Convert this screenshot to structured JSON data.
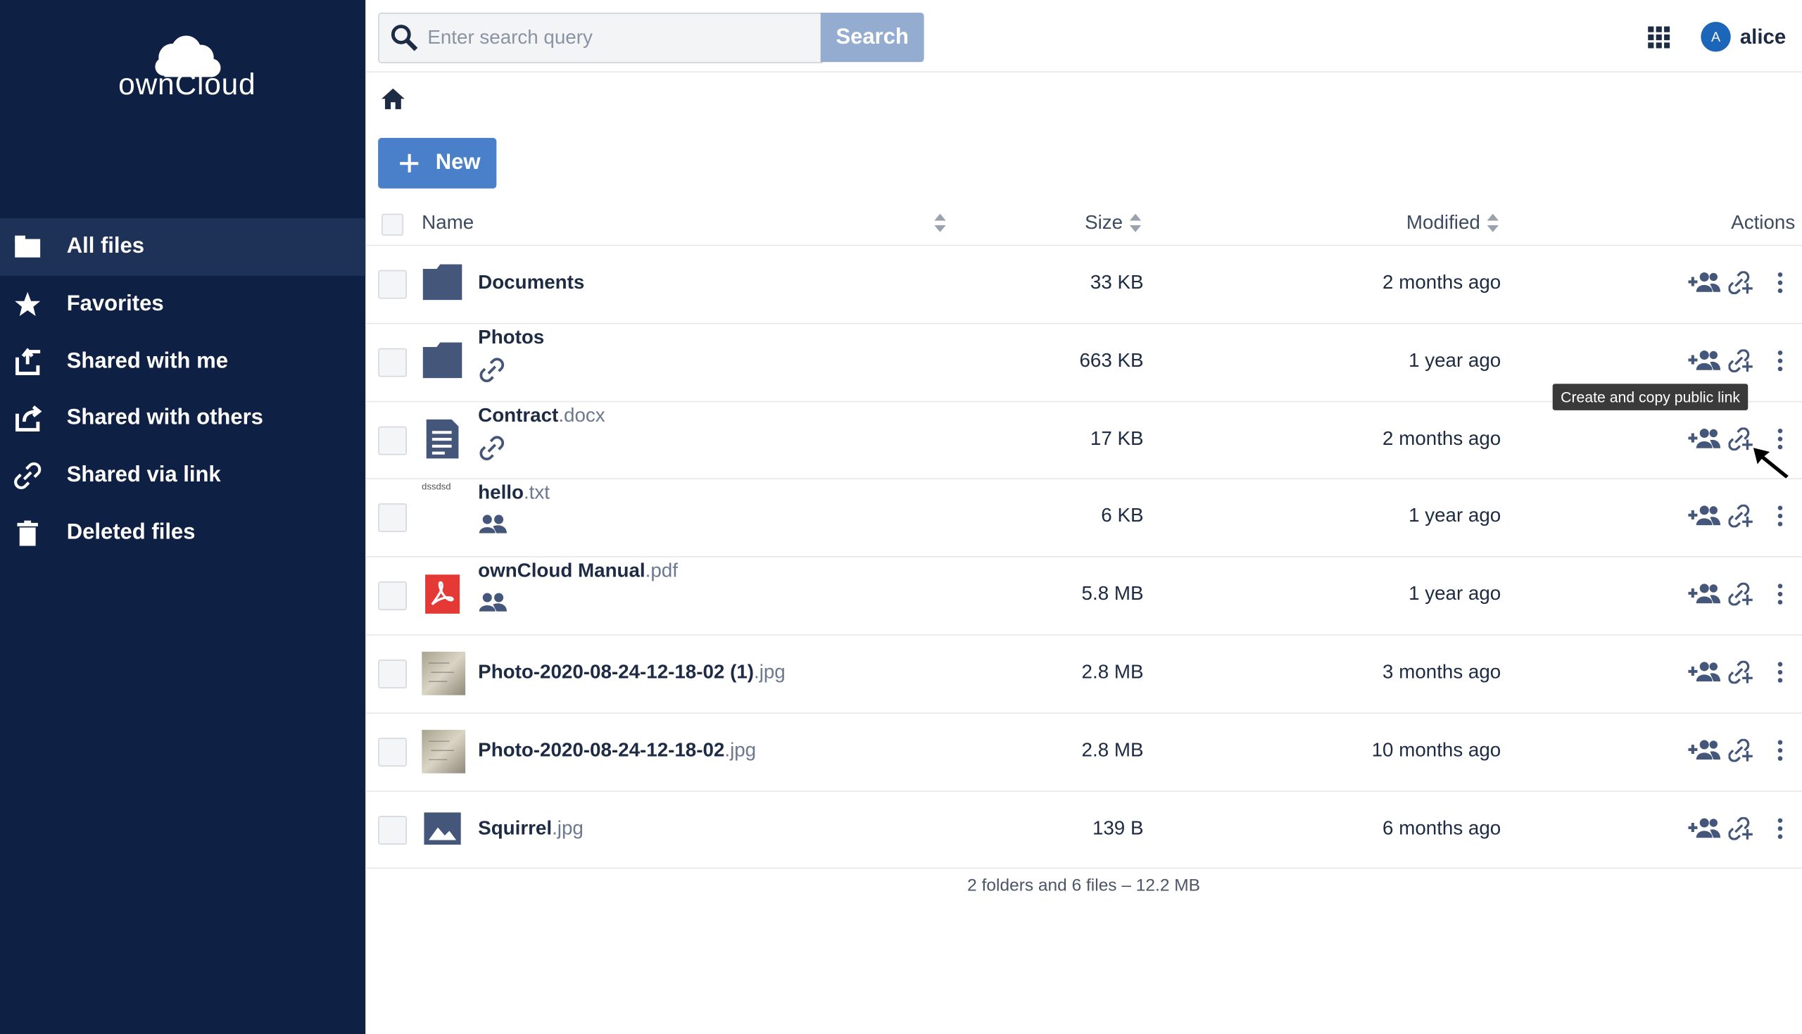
{
  "logo": "ownCloud",
  "sidebar": {
    "nav": [
      "All files",
      "Favorites",
      "Shared with me",
      "Shared with others",
      "Shared via link",
      "Deleted files"
    ]
  },
  "search": {
    "placeholder": "Enter search query",
    "button": "Search"
  },
  "user": {
    "initial": "A",
    "name": "alice"
  },
  "new_button": "New",
  "table": {
    "headers": [
      "Name",
      "Size",
      "Modified",
      "Actions"
    ],
    "rows": [
      {
        "name": "Documents",
        "size": "33 KB",
        "modified": "2 months ago"
      },
      {
        "name": "Photos",
        "size": "663 KB",
        "modified": "1 year ago"
      },
      {
        "name": "Contract",
        "extension": ".docx",
        "size": "17 KB",
        "modified": "2 months ago"
      },
      {
        "name": "hello",
        "extension": ".txt",
        "thumbnail_text": "dssdsd",
        "size": "6 KB",
        "modified": "1 year ago"
      },
      {
        "name": "ownCloud Manual",
        "extension": ".pdf",
        "size": "5.8 MB",
        "modified": "1 year ago"
      },
      {
        "name": "Photo-2020-08-24-12-18-02 (1)",
        "extension": ".jpg",
        "size": "2.8 MB",
        "modified": "3 months ago"
      },
      {
        "name": "Photo-2020-08-24-12-18-02",
        "extension": ".jpg",
        "size": "2.8 MB",
        "modified": "10 months ago"
      },
      {
        "name": "Squirrel",
        "extension": ".jpg",
        "size": "139 B",
        "modified": "6 months ago"
      }
    ],
    "summary": "2 folders and 6 files – 12.2 MB"
  },
  "tooltip": "Create and copy public link"
}
